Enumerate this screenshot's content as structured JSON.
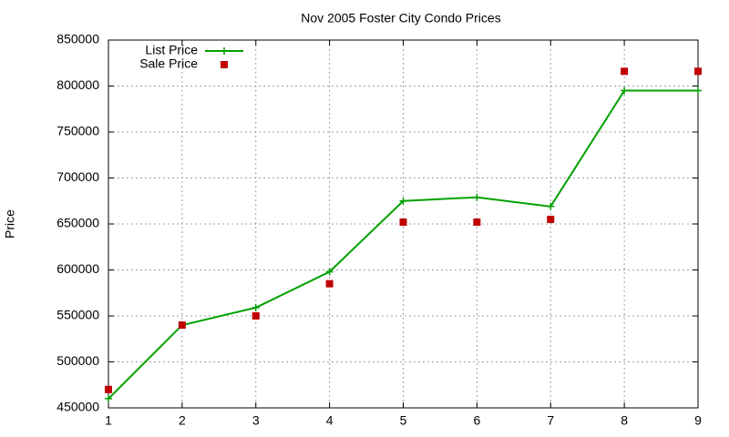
{
  "chart_data": {
    "type": "line",
    "title": "Nov 2005 Foster City Condo Prices",
    "y_label": "Price",
    "x": [
      1,
      2,
      3,
      4,
      5,
      6,
      7,
      8,
      9
    ],
    "series": [
      {
        "name": "List Price",
        "color": "#00a000",
        "style": "linespoints",
        "values": [
          460000,
          540000,
          559000,
          598000,
          675000,
          679000,
          669000,
          795000,
          795000
        ]
      },
      {
        "name": "Sale Price",
        "color": "#c00000",
        "style": "points",
        "values": [
          470000,
          540000,
          550000,
          585000,
          652000,
          652000,
          655000,
          816000,
          816000
        ]
      }
    ],
    "xlim": [
      1,
      9
    ],
    "xticks": [
      1,
      2,
      3,
      4,
      5,
      6,
      7,
      8,
      9
    ],
    "ylim": [
      450000,
      850000
    ],
    "yticks": [
      450000,
      500000,
      550000,
      600000,
      650000,
      700000,
      750000,
      800000,
      850000
    ],
    "grid": true,
    "legend": "top-left"
  }
}
